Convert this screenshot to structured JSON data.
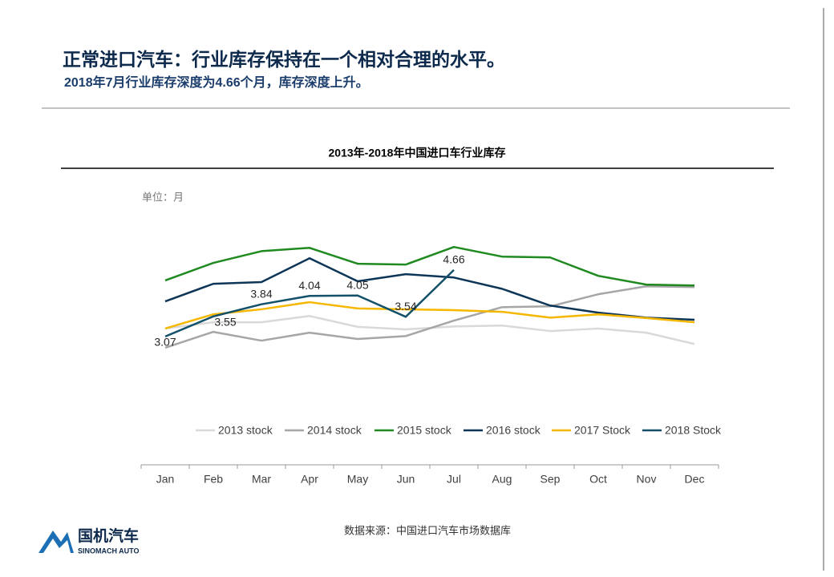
{
  "header": {
    "title": "正常进口汽车：行业库存保持在一个相对合理的水平。",
    "subtitle": "2018年7月行业库存深度为4.66个月，库存深度上升。"
  },
  "chart_data": {
    "type": "line",
    "title": "2013年-2018年中国进口车行业库存",
    "unit": "单位：月",
    "categories": [
      "Jan",
      "Feb",
      "Mar",
      "Apr",
      "May",
      "Jun",
      "Jul",
      "Aug",
      "Sep",
      "Oct",
      "Nov",
      "Dec"
    ],
    "series": [
      {
        "name": "2013 stock",
        "color": "#d9d9d9",
        "values": [
          3.26,
          3.41,
          3.41,
          3.56,
          3.3,
          3.24,
          3.31,
          3.33,
          3.2,
          3.26,
          3.16,
          2.89
        ]
      },
      {
        "name": "2014 stock",
        "color": "#a6a6a6",
        "values": [
          2.8,
          3.18,
          2.97,
          3.16,
          3.01,
          3.08,
          3.45,
          3.77,
          3.79,
          4.08,
          4.27,
          4.25
        ]
      },
      {
        "name": "2015 stock",
        "color": "#1f8a1f",
        "values": [
          4.41,
          4.83,
          5.11,
          5.19,
          4.81,
          4.79,
          5.21,
          4.98,
          4.96,
          4.52,
          4.31,
          4.29
        ]
      },
      {
        "name": "2016 stock",
        "color": "#0d3557",
        "values": [
          3.91,
          4.33,
          4.37,
          4.94,
          4.39,
          4.56,
          4.48,
          4.21,
          3.81,
          3.64,
          3.52,
          3.47
        ]
      },
      {
        "name": "2017 Stock",
        "color": "#f5b700",
        "values": [
          3.26,
          3.6,
          3.72,
          3.89,
          3.74,
          3.72,
          3.7,
          3.66,
          3.52,
          3.6,
          3.51,
          3.41
        ]
      },
      {
        "name": "2018 Stock",
        "color": "#13506a",
        "values": [
          3.07,
          3.55,
          3.84,
          4.04,
          4.05,
          3.54,
          4.66,
          null,
          null,
          null,
          null,
          null
        ],
        "data_labels": true
      }
    ],
    "ylim": [
      0,
      6
    ]
  },
  "source": "数据来源：中国进口汽车市场数据库",
  "logo": {
    "name": "国机汽车",
    "sub": "SINOMACH AUTO"
  }
}
